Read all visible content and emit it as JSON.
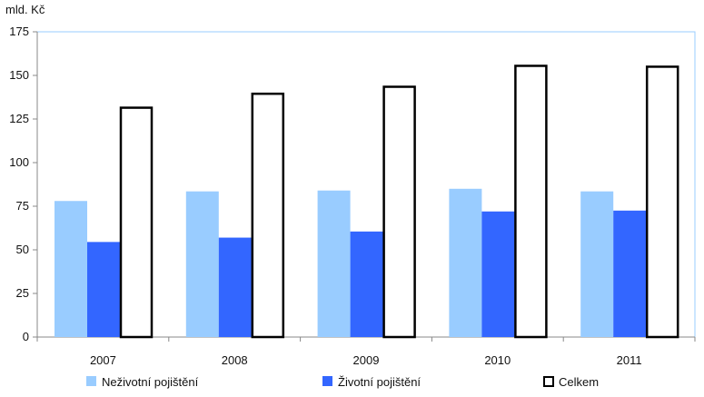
{
  "chart_data": {
    "type": "bar",
    "unit_label": "mld. Kč",
    "categories": [
      "2007",
      "2008",
      "2009",
      "2010",
      "2011"
    ],
    "series": [
      {
        "name": "Neživotní pojištění",
        "color": "#99ccff",
        "values": [
          78,
          83.5,
          84,
          85,
          83.5
        ]
      },
      {
        "name": "Životní pojištění",
        "color": "#3366ff",
        "values": [
          54.5,
          57,
          60.5,
          72,
          72.5
        ]
      },
      {
        "name": "Celkem",
        "color": "#ffffff",
        "stroke": "#000000",
        "values": [
          132,
          140,
          144,
          156,
          155.5
        ]
      }
    ],
    "yticks": [
      0,
      25,
      50,
      75,
      100,
      125,
      150,
      175
    ],
    "ylim": [
      0,
      175
    ],
    "grid": false,
    "legend_position": "bottom",
    "plot_border_color": "#99ccff"
  }
}
